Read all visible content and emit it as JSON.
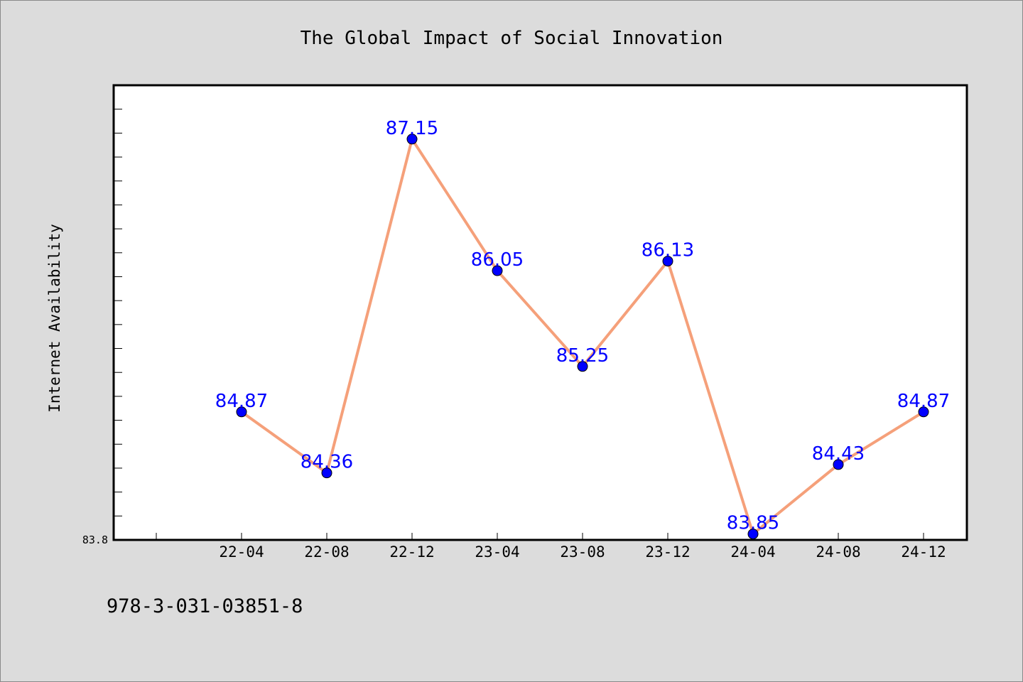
{
  "chart_data": {
    "type": "line",
    "title": "The Global Impact of Social Innovation",
    "xlabel": "",
    "ylabel": "Internet Availability",
    "categories": [
      "22-04",
      "22-08",
      "22-12",
      "23-04",
      "23-08",
      "23-12",
      "24-04",
      "24-08",
      "24-12"
    ],
    "values": [
      84.87,
      84.36,
      87.15,
      86.05,
      85.25,
      86.13,
      83.85,
      84.43,
      84.87
    ],
    "data_labels": [
      "84.87",
      "84.36",
      "87.15",
      "86.05",
      "85.25",
      "86.13",
      "83.85",
      "84.43",
      "84.87"
    ],
    "ylim": [
      83.8,
      87.6
    ],
    "ytick_labels": [
      "83.8"
    ],
    "grid": false,
    "legend": "none",
    "colors": {
      "line": "#f5a07a",
      "marker": "#0000ff",
      "label": "#0000ff",
      "plot_bg": "#ffffff",
      "page_bg": "#dcdcdc"
    }
  },
  "footnote": "978-3-031-03851-8"
}
